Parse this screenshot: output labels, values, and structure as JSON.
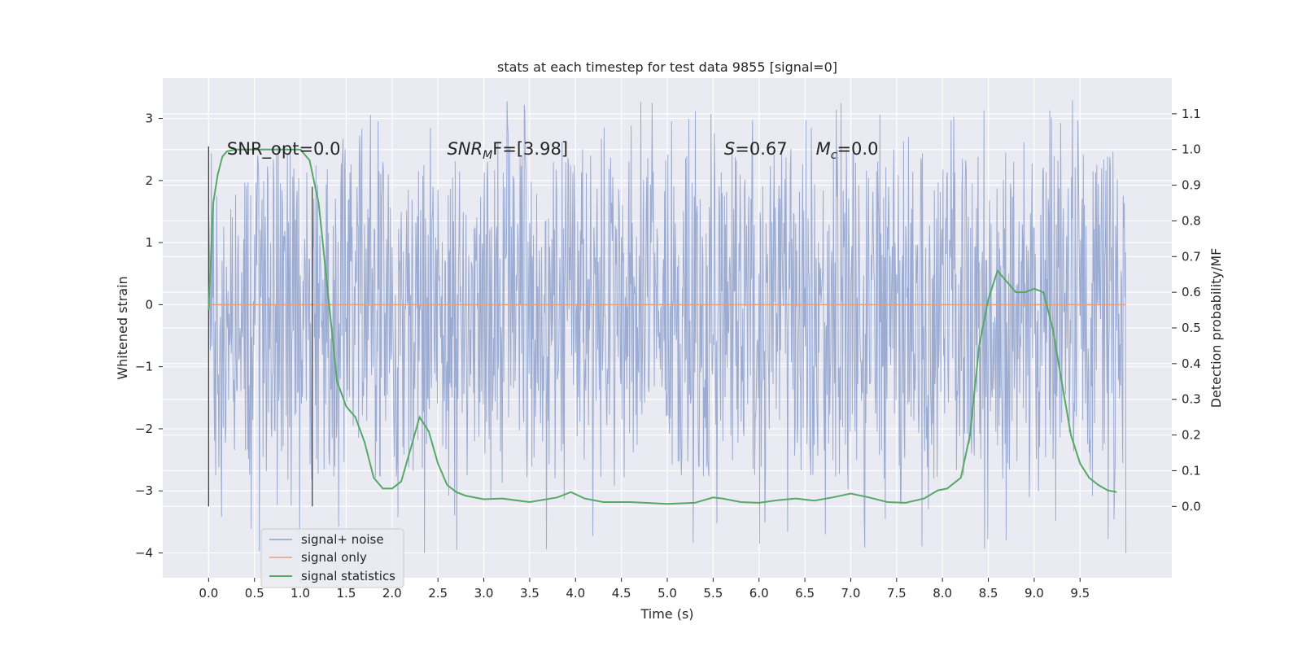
{
  "chart_data": {
    "type": "line",
    "title": "stats at each timestep for test data 9855 [signal=0]",
    "xlabel": "Time (s)",
    "ylabel": "Whitened strain",
    "y2label": "Detection probability/MF",
    "xlim": [
      -0.5,
      10.5
    ],
    "ylim": [
      -4.4,
      3.65
    ],
    "y2lim": [
      -0.2,
      1.2
    ],
    "xticks": [
      0.0,
      0.5,
      1.0,
      1.5,
      2.0,
      2.5,
      3.0,
      3.5,
      4.0,
      4.5,
      5.0,
      5.5,
      6.0,
      6.5,
      7.0,
      7.5,
      8.0,
      8.5,
      9.0,
      9.5
    ],
    "xtick_labels": [
      "0.0",
      "0.5",
      "1.0",
      "1.5",
      "2.0",
      "2.5",
      "3.0",
      "3.5",
      "4.0",
      "4.5",
      "5.0",
      "5.5",
      "6.0",
      "6.5",
      "7.0",
      "7.5",
      "8.0",
      "8.5",
      "9.0",
      "9.5"
    ],
    "yticks": [
      3,
      2,
      1,
      0,
      -1,
      -2,
      -3,
      -4
    ],
    "ytick_labels": [
      "3",
      "2",
      "1",
      "0",
      "−1",
      "−2",
      "−3",
      "−4"
    ],
    "y2ticks": [
      1.1,
      1.0,
      0.9,
      0.8,
      0.7,
      0.6,
      0.5,
      0.4,
      0.3,
      0.2,
      0.1,
      0.0
    ],
    "y2tick_labels": [
      "1.1",
      "1.0",
      "0.9",
      "0.8",
      "0.7",
      "0.6",
      "0.5",
      "0.4",
      "0.3",
      "0.2",
      "0.1",
      "0.0"
    ],
    "grid": true,
    "legend_position": "lower-left",
    "colors": {
      "background": "#eaeaf2",
      "grid": "#ffffff",
      "noise": "#8da0cb",
      "signal": "#e8a07c",
      "stats": "#55a868",
      "marker": "#444444"
    },
    "series": [
      {
        "name": "signal+ noise",
        "axis": "left",
        "style": "dense-noise",
        "x_range": [
          0.0,
          10.0
        ],
        "typical_band": [
          -1.6,
          1.4
        ],
        "envelope_max": 3.3,
        "envelope_min": -4.05
      },
      {
        "name": "signal only",
        "axis": "left",
        "x": [
          0.0,
          10.0
        ],
        "y": [
          0.0,
          0.0
        ]
      },
      {
        "name": "signal statistics",
        "axis": "right",
        "x": [
          0.0,
          0.05,
          0.1,
          0.15,
          0.2,
          0.3,
          0.5,
          0.7,
          0.9,
          1.0,
          1.1,
          1.2,
          1.3,
          1.4,
          1.5,
          1.6,
          1.7,
          1.8,
          1.9,
          2.0,
          2.1,
          2.2,
          2.3,
          2.4,
          2.5,
          2.6,
          2.7,
          2.8,
          3.0,
          3.2,
          3.5,
          3.8,
          3.95,
          4.1,
          4.3,
          4.6,
          5.0,
          5.3,
          5.5,
          5.6,
          5.8,
          6.0,
          6.2,
          6.4,
          6.6,
          6.8,
          7.0,
          7.2,
          7.4,
          7.6,
          7.8,
          7.95,
          8.05,
          8.2,
          8.3,
          8.4,
          8.5,
          8.6,
          8.7,
          8.8,
          8.9,
          9.0,
          9.1,
          9.2,
          9.3,
          9.4,
          9.5,
          9.6,
          9.7,
          9.8,
          9.9
        ],
        "y": [
          0.55,
          0.85,
          0.93,
          0.98,
          0.995,
          1.0,
          1.0,
          1.0,
          1.0,
          1.0,
          0.97,
          0.85,
          0.6,
          0.35,
          0.28,
          0.25,
          0.18,
          0.08,
          0.05,
          0.05,
          0.07,
          0.16,
          0.25,
          0.21,
          0.12,
          0.06,
          0.04,
          0.03,
          0.02,
          0.022,
          0.012,
          0.025,
          0.04,
          0.022,
          0.012,
          0.012,
          0.007,
          0.01,
          0.025,
          0.022,
          0.012,
          0.01,
          0.017,
          0.022,
          0.016,
          0.025,
          0.036,
          0.025,
          0.012,
          0.01,
          0.022,
          0.045,
          0.05,
          0.08,
          0.2,
          0.45,
          0.58,
          0.66,
          0.63,
          0.6,
          0.6,
          0.61,
          0.6,
          0.5,
          0.35,
          0.2,
          0.12,
          0.08,
          0.06,
          0.045,
          0.04
        ]
      }
    ],
    "markers": {
      "x": [
        0.0,
        1.13
      ],
      "y_bottom": -3.25,
      "y_top": [
        2.55,
        1.9
      ]
    },
    "annotations": [
      {
        "base": "SNR_opt=0.0",
        "sub": "",
        "tail": "",
        "x": 0.2,
        "y": 2.55
      },
      {
        "base": "SNR",
        "sub": "M",
        "tail": "F=[3.98]",
        "italic": true,
        "x": 2.6,
        "y": 2.55
      },
      {
        "base": "S",
        "sub": "",
        "tail": "=0.67",
        "italic": true,
        "x": 5.62,
        "y": 2.55
      },
      {
        "base": "M",
        "sub": "c",
        "tail": "=0.0",
        "italic": true,
        "x": 6.62,
        "y": 2.55
      }
    ]
  }
}
